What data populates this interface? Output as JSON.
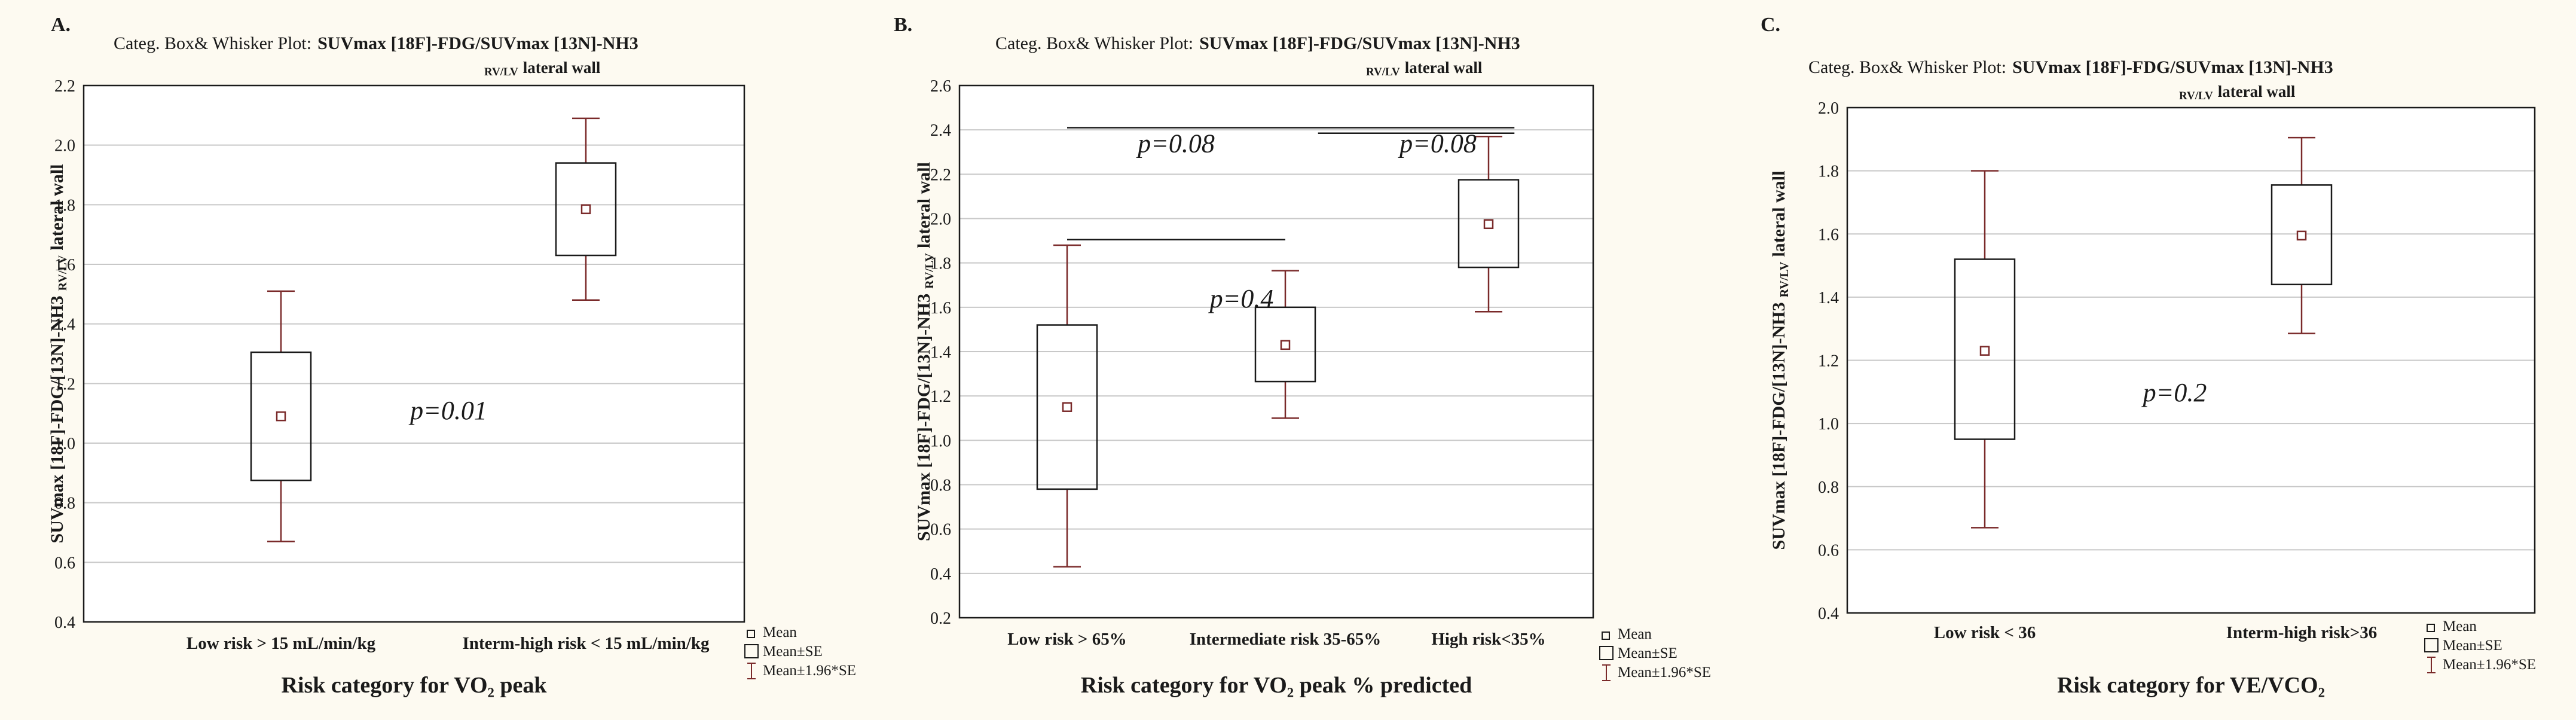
{
  "figure_background": "#fdfaf1",
  "colors": {
    "box": "#1a1a1a",
    "whisker": "#7a2a2a",
    "grid": "#c8c8c8",
    "text": "#1a1a1a",
    "plot_bg": "#ffffff"
  },
  "chart_data": [
    {
      "type": "box",
      "panel_label": "A.",
      "title_prefix": "Categ. Box& Whisker Plot:",
      "title_main": "SUVmax [18F]-FDG/SUVmax [13N]-NH3",
      "title_sub_small": "RV/LV",
      "title_sub": "lateral wall",
      "ylabel_main": "SUVmax [18F]-FDG/[13N]-NH3",
      "ylabel_sub": "RV/LV",
      "ylabel_end": "lateral wall",
      "xlabel": "Risk category for VO₂ peak",
      "ylim": [
        0.4,
        2.2
      ],
      "yticks": [
        "0.4",
        "0.6",
        "0.8",
        "1.0",
        "1.2",
        "1.4",
        "1.6",
        "1.8",
        "2.0",
        "2.2"
      ],
      "grid": true,
      "categories": [
        "Low risk > 15 mL/min/kg",
        "Interm-high risk < 15 mL/min/kg"
      ],
      "series": [
        {
          "name": "Low risk > 15 mL/min/kg",
          "mean": 1.09,
          "se_low": 0.875,
          "se_high": 1.305,
          "ci_low": 0.67,
          "ci_high": 1.51
        },
        {
          "name": "Interm-high risk < 15 mL/min/kg",
          "mean": 1.785,
          "se_low": 1.63,
          "se_high": 1.94,
          "ci_low": 1.48,
          "ci_high": 2.09
        }
      ],
      "annotations": [
        {
          "text": "p=0.01",
          "x": 0.55,
          "y": 1.08
        }
      ],
      "comparison_lines": [],
      "legend": {
        "position": "bottom-right",
        "items": [
          "Mean",
          "Mean±SE",
          "Mean±1.96*SE"
        ]
      }
    },
    {
      "type": "box",
      "panel_label": "B.",
      "title_prefix": "Categ. Box& Whisker Plot:",
      "title_main": "SUVmax [18F]-FDG/SUVmax [13N]-NH3",
      "title_sub_small": "RV/LV",
      "title_sub": "lateral wall",
      "ylabel_main": "SUVmax [18F]-FDG/[13N]-NH3",
      "ylabel_sub": "RV/LV",
      "ylabel_end": "lateral wall",
      "xlabel": "Risk category for VO₂ peak % predicted",
      "ylim": [
        0.2,
        2.6
      ],
      "yticks": [
        "0.2",
        "0.4",
        "0.6",
        "0.8",
        "1.0",
        "1.2",
        "1.4",
        "1.6",
        "1.8",
        "2.0",
        "2.2",
        "2.4",
        "2.6"
      ],
      "grid": true,
      "categories": [
        "Low risk > 65%",
        "Intermediate risk 35-65%",
        "High risk<35%"
      ],
      "series": [
        {
          "name": "Low risk > 65%",
          "mean": 1.15,
          "se_low": 0.78,
          "se_high": 1.52,
          "ci_low": 0.43,
          "ci_high": 1.88
        },
        {
          "name": "Intermediate risk 35-65%",
          "mean": 1.43,
          "se_low": 1.265,
          "se_high": 1.6,
          "ci_low": 1.1,
          "ci_high": 1.765
        },
        {
          "name": "High risk<35%",
          "mean": 1.975,
          "se_low": 1.78,
          "se_high": 2.175,
          "ci_low": 1.58,
          "ci_high": 2.37
        }
      ],
      "annotations": [
        {
          "text": "p=0.08",
          "x": 0.5,
          "y": 2.3
        },
        {
          "text": "p=0.08",
          "x": 1.7,
          "y": 2.3
        },
        {
          "text": "p=0.4",
          "x": 0.8,
          "y": 1.6
        }
      ],
      "comparison_lines": [
        {
          "x1": 0,
          "x2": 2.05,
          "y": 2.41
        },
        {
          "x1": 1.15,
          "x2": 2.05,
          "y": 2.385
        },
        {
          "x1": 0,
          "x2": 1.0,
          "y": 1.905
        }
      ],
      "legend": {
        "position": "bottom-right",
        "items": [
          "Mean",
          "Mean±SE",
          "Mean±1.96*SE"
        ]
      }
    },
    {
      "type": "box",
      "panel_label": "C.",
      "title_prefix": "Categ. Box& Whisker Plot:",
      "title_main": "SUVmax [18F]-FDG/SUVmax [13N]-NH3",
      "title_sub_small": "RV/LV",
      "title_sub": "lateral wall",
      "ylabel_main": "SUVmax [18F]-FDG/[13N]-NH3",
      "ylabel_sub": "RV/LV",
      "ylabel_end": "lateral wall",
      "xlabel": "Risk category for VE/VCO₂",
      "ylim": [
        0.4,
        2.0
      ],
      "yticks": [
        "0.4",
        "0.6",
        "0.8",
        "1.0",
        "1.2",
        "1.4",
        "1.6",
        "1.8",
        "2.0"
      ],
      "grid": true,
      "categories": [
        "Low risk < 36",
        "Interm-high risk>36"
      ],
      "series": [
        {
          "name": "Low risk < 36",
          "mean": 1.23,
          "se_low": 0.95,
          "se_high": 1.52,
          "ci_low": 0.67,
          "ci_high": 1.8
        },
        {
          "name": "Interm-high risk>36",
          "mean": 1.595,
          "se_low": 1.44,
          "se_high": 1.755,
          "ci_low": 1.285,
          "ci_high": 1.905
        }
      ],
      "annotations": [
        {
          "text": "p=0.2",
          "x": 0.6,
          "y": 1.07
        }
      ],
      "comparison_lines": [],
      "legend": {
        "position": "bottom-right",
        "items": [
          "Mean",
          "Mean±SE",
          "Mean±1.96*SE"
        ]
      }
    }
  ]
}
